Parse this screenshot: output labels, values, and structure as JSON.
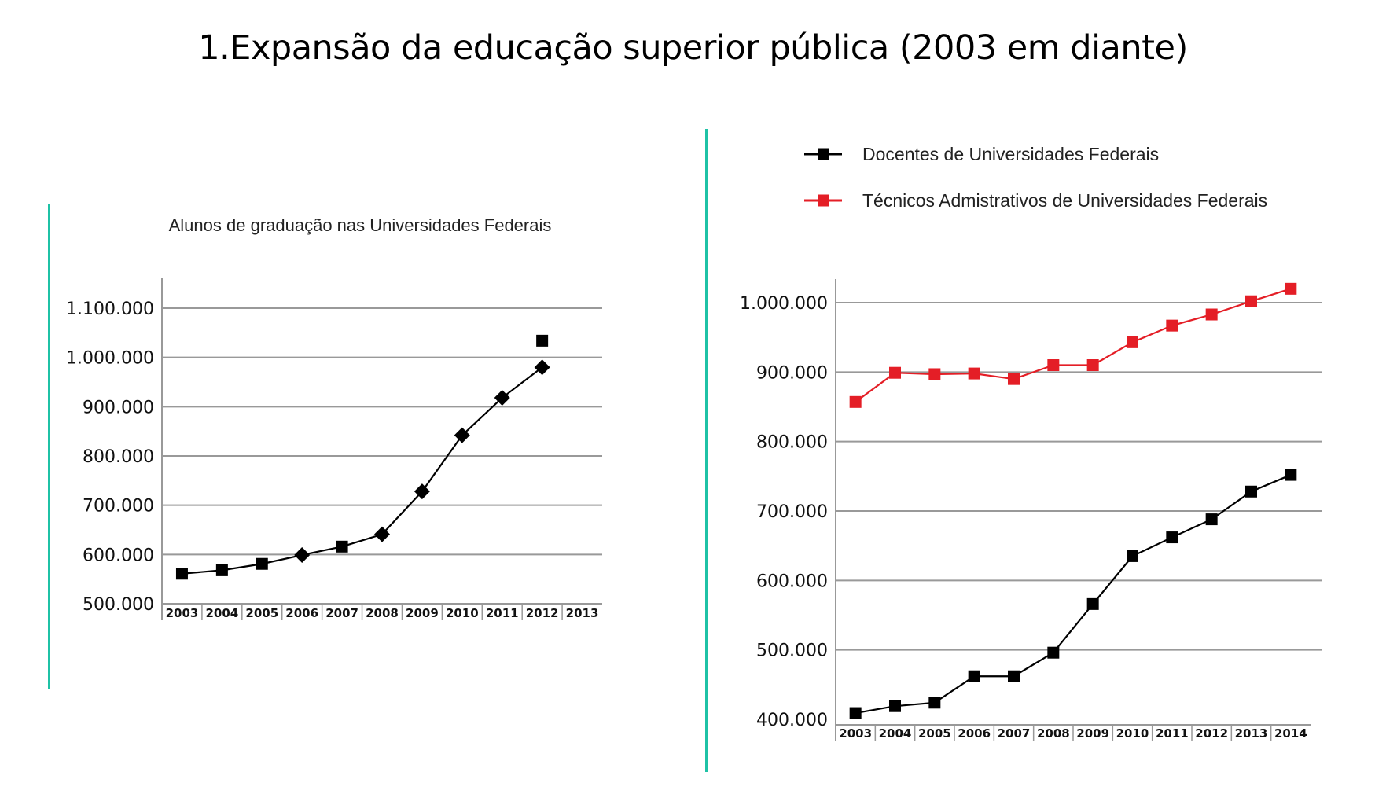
{
  "page": {
    "title": "1.Expansão da educação superior pública (2003 em diante)"
  },
  "colors": {
    "accent_divider": "#1fc2a6",
    "series_black": "#000000",
    "series_red": "#e41e26",
    "grid": "#999999"
  },
  "chart_data": [
    {
      "type": "line",
      "title": "Alunos de graduação nas Universidades Federais",
      "xlabel": "",
      "ylabel": "",
      "grid": true,
      "categories": [
        "2003",
        "2004",
        "2005",
        "2006",
        "2007",
        "2008",
        "2009",
        "2010",
        "2011",
        "2012",
        "2013"
      ],
      "y_tick_labels": [
        "500.000",
        "600.000",
        "700.000",
        "800.000",
        "900.000",
        "1.000.000",
        "1.100.000"
      ],
      "y_ticks": [
        500000,
        600000,
        700000,
        800000,
        900000,
        1000000,
        1100000
      ],
      "ylim": [
        500000,
        1100000
      ],
      "series": [
        {
          "color": "#000000",
          "x": [
            "2003",
            "2004",
            "2005",
            "2006",
            "2007",
            "2008",
            "2009",
            "2010",
            "2011",
            "2012"
          ],
          "values": [
            561000,
            568000,
            581000,
            599000,
            616000,
            641000,
            728000,
            842000,
            918000,
            980000
          ],
          "markers": [
            "square",
            "square",
            "square",
            "diamond",
            "square",
            "diamond",
            "diamond",
            "diamond",
            "diamond",
            "diamond"
          ]
        },
        {
          "color": "#000000",
          "x": [
            "2012"
          ],
          "values": [
            1034000
          ],
          "markers": [
            "square"
          ],
          "unconnected": true
        }
      ]
    },
    {
      "type": "line",
      "title": "",
      "xlabel": "",
      "ylabel": "",
      "grid": true,
      "legend_position": "top",
      "categories": [
        "2003",
        "2004",
        "2005",
        "2006",
        "2007",
        "2008",
        "2009",
        "2010",
        "2011",
        "2012",
        "2013",
        "2014"
      ],
      "y_tick_labels": [
        "400.000",
        "500.000",
        "600.000",
        "700.000",
        "800.000",
        "900.000",
        "1.000.000"
      ],
      "y_ticks": [
        400000,
        500000,
        600000,
        700000,
        800000,
        900000,
        1000000
      ],
      "ylim": [
        400000,
        1000000
      ],
      "series": [
        {
          "name": "Docentes de Universidades Federais",
          "color": "#000000",
          "values": [
            409000,
            419000,
            424000,
            462000,
            462000,
            496000,
            566000,
            635000,
            662000,
            688000,
            728000,
            752000
          ]
        },
        {
          "name": "Técnicos Admistrativos de Universidades Federais",
          "color": "#e41e26",
          "values": [
            857000,
            899000,
            897000,
            898000,
            890000,
            910000,
            910000,
            943000,
            967000,
            983000,
            1002000,
            1020000
          ]
        }
      ]
    }
  ]
}
